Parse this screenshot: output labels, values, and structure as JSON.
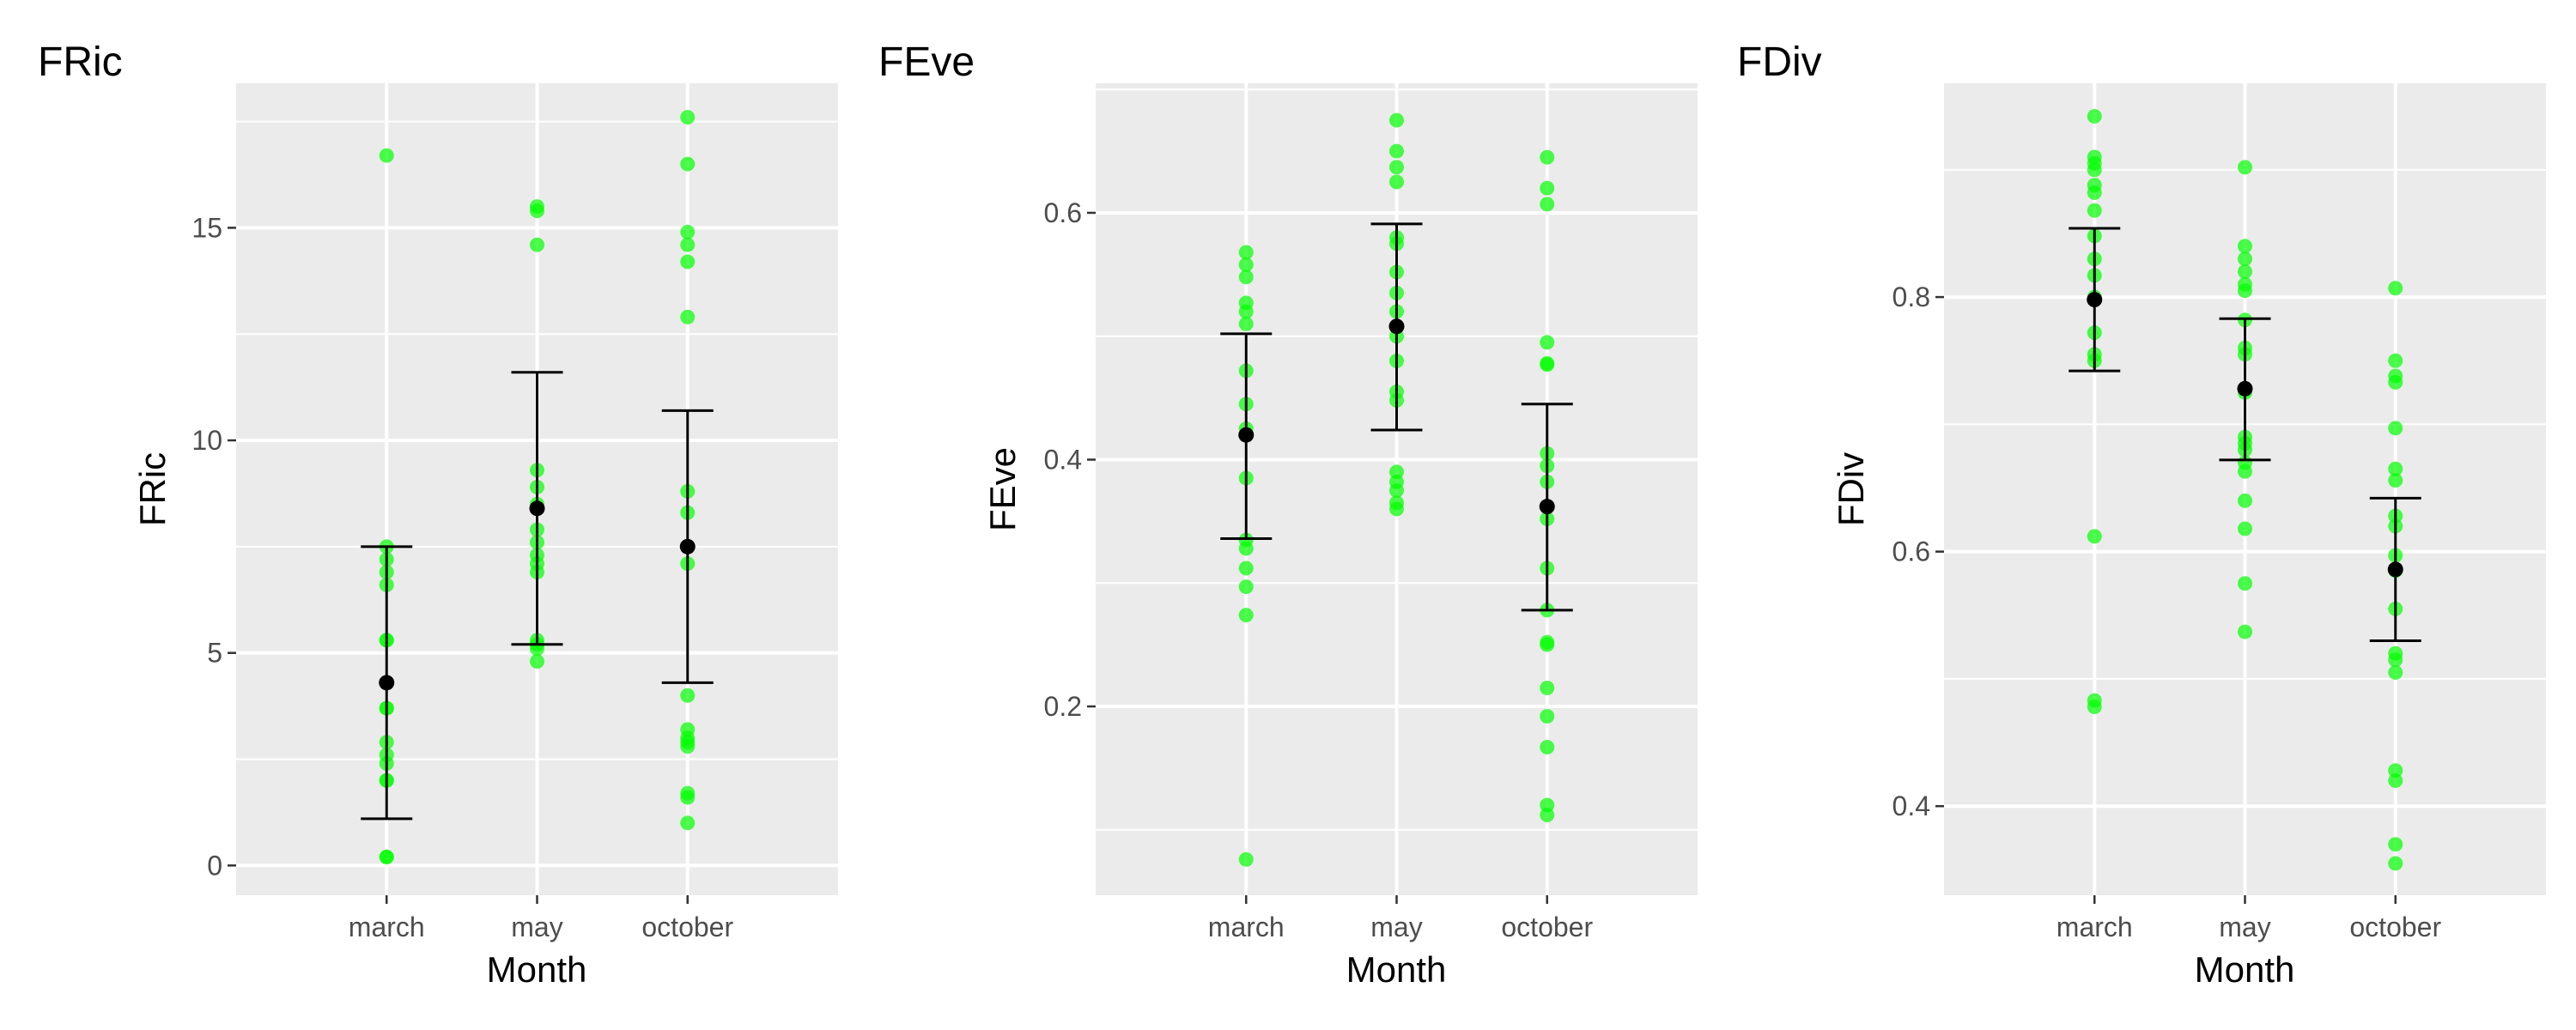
{
  "chart_data": [
    {
      "type": "scatter",
      "title": "FRic",
      "xlabel": "Month",
      "ylabel": "FRic",
      "categories": [
        "march",
        "may",
        "october"
      ],
      "yticks": [
        0,
        5,
        10,
        15
      ],
      "ytick_labels": [
        "0",
        "5",
        "10",
        "15"
      ],
      "ylim": [
        -0.7,
        18.4
      ],
      "grid": true,
      "points": [
        [
          16.7,
          7.5,
          7.2,
          6.9,
          6.6,
          5.3,
          5.3,
          3.7,
          3.7,
          2.9,
          2.6,
          2.4,
          2.0,
          2.0,
          0.2,
          0.2
        ],
        [
          15.5,
          15.4,
          14.6,
          9.3,
          8.9,
          8.5,
          8.4,
          7.9,
          7.6,
          7.3,
          7.1,
          6.9,
          5.3,
          5.2,
          5.1,
          4.8
        ],
        [
          17.6,
          16.5,
          14.9,
          14.6,
          14.2,
          12.9,
          8.8,
          8.3,
          7.1,
          4.0,
          3.2,
          3.0,
          2.9,
          2.8,
          1.7,
          1.6,
          1.0
        ]
      ],
      "means": [
        4.3,
        8.4,
        7.5
      ],
      "ci_low": [
        1.1,
        5.2,
        4.3
      ],
      "ci_high": [
        7.5,
        11.6,
        10.7
      ]
    },
    {
      "type": "scatter",
      "title": "FEve",
      "xlabel": "Month",
      "ylabel": "FEve",
      "categories": [
        "march",
        "may",
        "october"
      ],
      "yticks": [
        0.2,
        0.4,
        0.6
      ],
      "ytick_labels": [
        "0.2",
        "0.4",
        "0.6"
      ],
      "ylim": [
        0.047,
        0.705
      ],
      "grid": true,
      "points": [
        [
          0.568,
          0.558,
          0.548,
          0.527,
          0.52,
          0.51,
          0.472,
          0.445,
          0.425,
          0.385,
          0.335,
          0.328,
          0.312,
          0.297,
          0.274,
          0.076
        ],
        [
          0.675,
          0.65,
          0.637,
          0.625,
          0.58,
          0.575,
          0.552,
          0.535,
          0.52,
          0.5,
          0.48,
          0.455,
          0.448,
          0.39,
          0.382,
          0.375,
          0.365,
          0.36
        ],
        [
          0.645,
          0.62,
          0.607,
          0.495,
          0.478,
          0.477,
          0.405,
          0.395,
          0.382,
          0.352,
          0.312,
          0.278,
          0.252,
          0.25,
          0.215,
          0.192,
          0.167,
          0.12,
          0.112
        ]
      ],
      "means": [
        0.42,
        0.508,
        0.362
      ],
      "ci_low": [
        0.336,
        0.424,
        0.278
      ],
      "ci_high": [
        0.502,
        0.591,
        0.445
      ]
    },
    {
      "type": "scatter",
      "title": "FDiv",
      "xlabel": "Month",
      "ylabel": "FDiv",
      "categories": [
        "march",
        "may",
        "october"
      ],
      "yticks": [
        0.4,
        0.6,
        0.8
      ],
      "ytick_labels": [
        "0.4",
        "0.6",
        "0.8"
      ],
      "ylim": [
        0.33,
        0.968
      ],
      "grid": true,
      "points": [
        [
          0.942,
          0.91,
          0.905,
          0.9,
          0.888,
          0.882,
          0.868,
          0.848,
          0.83,
          0.817,
          0.8,
          0.772,
          0.755,
          0.75,
          0.612,
          0.483,
          0.478
        ],
        [
          0.902,
          0.84,
          0.83,
          0.82,
          0.81,
          0.805,
          0.782,
          0.76,
          0.755,
          0.725,
          0.69,
          0.685,
          0.68,
          0.67,
          0.663,
          0.64,
          0.618,
          0.575,
          0.537
        ],
        [
          0.807,
          0.75,
          0.738,
          0.733,
          0.697,
          0.665,
          0.656,
          0.628,
          0.62,
          0.597,
          0.585,
          0.555,
          0.52,
          0.515,
          0.505,
          0.428,
          0.42,
          0.37,
          0.355
        ]
      ],
      "means": [
        0.798,
        0.728,
        0.586
      ],
      "ci_low": [
        0.742,
        0.672,
        0.53
      ],
      "ci_high": [
        0.854,
        0.783,
        0.642
      ]
    }
  ],
  "colors": {
    "panel_background": "#ebebeb",
    "grid": "#ffffff",
    "points": "#00ff00",
    "mean": "#000000",
    "errorbar": "#000000",
    "tick_label": "#4d4d4d",
    "tick": "#333333"
  }
}
